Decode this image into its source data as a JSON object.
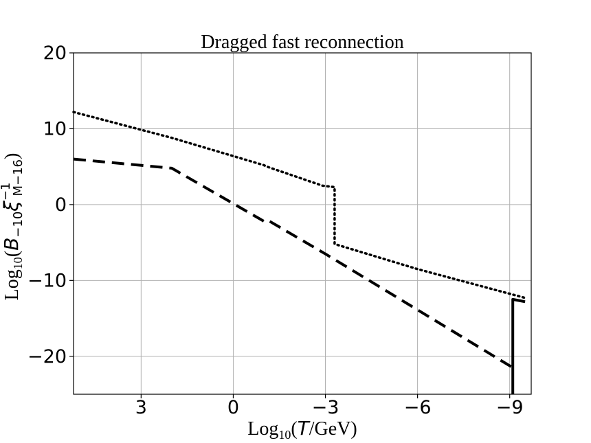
{
  "chart_data": {
    "type": "line",
    "title": "Dragged fast reconnection",
    "xlabel": "Log10(T/GeV)",
    "ylabel": "Log10(B−10 ξM−16^−1)",
    "xlim": [
      5.2,
      -9.7
    ],
    "ylim": [
      -25,
      20
    ],
    "x_reversed": true,
    "grid": true,
    "x_ticks": [
      3,
      0,
      -3,
      -6,
      -9
    ],
    "x_tick_labels": [
      "3",
      "0",
      "−3",
      "−6",
      "−9"
    ],
    "y_ticks": [
      20,
      10,
      0,
      -10,
      -20
    ],
    "y_tick_labels": [
      "20",
      "10",
      "0",
      "−10",
      "−20"
    ],
    "series": [
      {
        "name": "dotted",
        "style": "dotted",
        "points": [
          [
            5.2,
            12.2
          ],
          [
            2.0,
            8.8
          ],
          [
            -1.0,
            5.2
          ],
          [
            -1.1,
            5.0
          ],
          [
            -2.9,
            2.5
          ],
          [
            -3.3,
            2.3
          ],
          [
            -3.3,
            -5.2
          ],
          [
            -6.0,
            -8.5
          ],
          [
            -9.5,
            -12.3
          ]
        ]
      },
      {
        "name": "dashed",
        "style": "dashed",
        "points": [
          [
            5.2,
            6.0
          ],
          [
            2.0,
            4.8
          ],
          [
            -1.0,
            -2.2
          ],
          [
            -1.1,
            -2.0
          ],
          [
            -3.0,
            -6.5
          ],
          [
            -9.1,
            -21.5
          ]
        ]
      },
      {
        "name": "solid",
        "style": "solid",
        "points": [
          [
            -9.1,
            -25.0
          ],
          [
            -9.1,
            -12.5
          ],
          [
            -9.5,
            -12.8
          ]
        ]
      }
    ]
  }
}
